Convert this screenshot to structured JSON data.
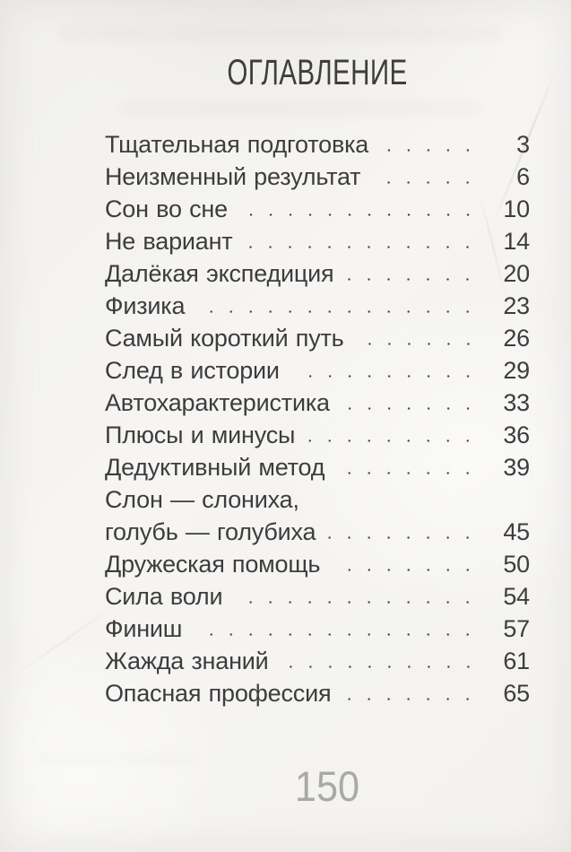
{
  "page": {
    "title": "ОГЛАВЛЕНИЕ",
    "page_number": "150",
    "toc": [
      {
        "title": "Тщательная подготовка",
        "page": "3"
      },
      {
        "title": "Неизменный результат",
        "page": "6"
      },
      {
        "title": "Сон во сне",
        "page": "10"
      },
      {
        "title": "Не вариант",
        "page": "14"
      },
      {
        "title": "Далёкая экспедиция",
        "page": "20"
      },
      {
        "title": "Физика",
        "page": "23"
      },
      {
        "title": "Самый короткий путь",
        "page": "26"
      },
      {
        "title": "След в истории",
        "page": "29"
      },
      {
        "title": "Автохарактеристика",
        "page": "33"
      },
      {
        "title": "Плюсы и минусы",
        "page": "36"
      },
      {
        "title": "Дедуктивный метод",
        "page": "39"
      },
      {
        "title": "Слон — слониха,",
        "page": ""
      },
      {
        "title": "голубь — голубиха",
        "page": "45"
      },
      {
        "title": "Дружеская помощь",
        "page": "50"
      },
      {
        "title": "Сила воли",
        "page": "54"
      },
      {
        "title": "Финиш",
        "page": "57"
      },
      {
        "title": "Жажда знаний",
        "page": "61"
      },
      {
        "title": "Опасная профессия",
        "page": "65"
      }
    ],
    "colors": {
      "paper": "#f4f3f1",
      "ink": "#3d3d3d",
      "folio_gray": "#a9a9a9"
    }
  }
}
